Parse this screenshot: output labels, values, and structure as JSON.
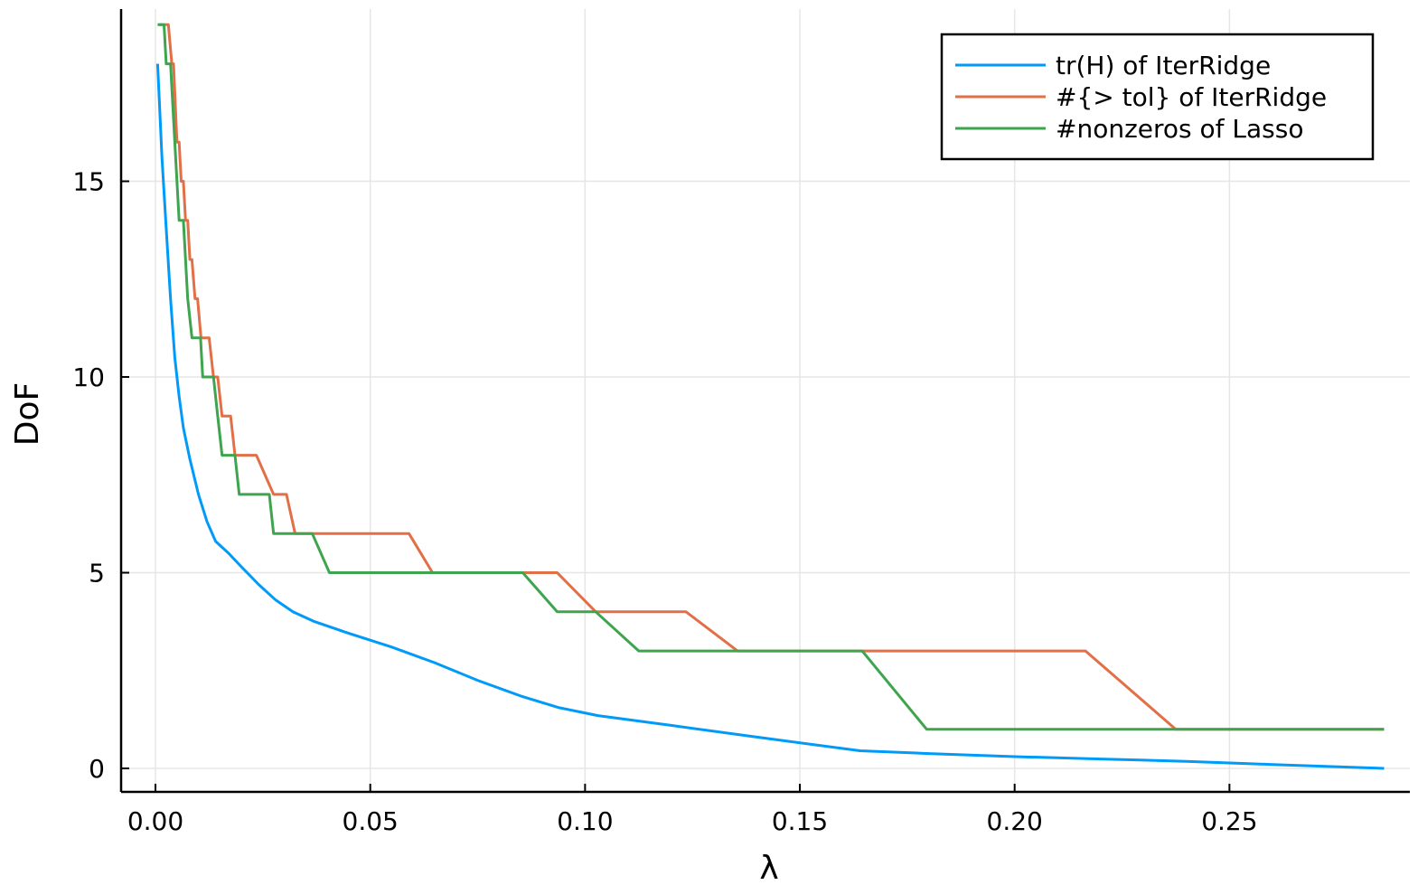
{
  "chart_data": {
    "type": "line",
    "xlabel": "λ",
    "ylabel": "DoF",
    "xlim": [
      -0.008,
      0.292
    ],
    "ylim": [
      -0.6,
      19.4
    ],
    "x_ticks": [
      0.0,
      0.05,
      0.1,
      0.15,
      0.2,
      0.25
    ],
    "x_tick_labels": [
      "0.00",
      "0.05",
      "0.10",
      "0.15",
      "0.20",
      "0.25"
    ],
    "y_ticks": [
      0,
      5,
      10,
      15
    ],
    "y_tick_labels": [
      "0",
      "5",
      "10",
      "15"
    ],
    "grid": true,
    "legend_position": "top-right",
    "colors": {
      "tr_h": "#009af9",
      "tol": "#e26f46",
      "lasso": "#3ea44e",
      "grid": "#e6e6e6",
      "axis": "#000000"
    },
    "series": [
      {
        "name": "tr(H) of IterRidge",
        "color_key": "tr_h",
        "x": [
          0.0005,
          0.0015,
          0.0025,
          0.0035,
          0.0045,
          0.0055,
          0.0065,
          0.008,
          0.01,
          0.012,
          0.014,
          0.017,
          0.02,
          0.024,
          0.028,
          0.032,
          0.037,
          0.045,
          0.055,
          0.065,
          0.075,
          0.085,
          0.094,
          0.103,
          0.12,
          0.14,
          0.164,
          0.18,
          0.2,
          0.22,
          0.24,
          0.26,
          0.286
        ],
        "y": [
          18.0,
          15.6,
          13.8,
          12.0,
          10.5,
          9.5,
          8.7,
          7.9,
          7.0,
          6.3,
          5.8,
          5.5,
          5.15,
          4.7,
          4.3,
          4.0,
          3.75,
          3.45,
          3.1,
          2.7,
          2.25,
          1.85,
          1.55,
          1.35,
          1.1,
          0.8,
          0.45,
          0.38,
          0.3,
          0.24,
          0.18,
          0.1,
          0.0
        ]
      },
      {
        "name": "#{> tol} of IterRidge",
        "color_key": "tol",
        "x": [
          0.001,
          0.0026,
          0.003,
          0.0038,
          0.0042,
          0.005,
          0.0055,
          0.006,
          0.0065,
          0.007,
          0.0075,
          0.008,
          0.0085,
          0.0092,
          0.0098,
          0.0106,
          0.0115,
          0.0125,
          0.0135,
          0.0145,
          0.0155,
          0.0165,
          0.0175,
          0.0185,
          0.0195,
          0.0205,
          0.0225,
          0.0235,
          0.0275,
          0.0305,
          0.0325,
          0.0335,
          0.0365,
          0.059,
          0.0645,
          0.0855,
          0.0935,
          0.1025,
          0.1235,
          0.1355,
          0.1645,
          0.2165,
          0.2375,
          0.286
        ],
        "y": [
          19,
          19,
          19,
          18,
          18,
          16,
          16,
          15,
          15,
          14,
          14,
          13,
          13,
          12,
          12,
          11,
          11,
          11,
          10,
          10,
          9,
          9,
          9,
          8,
          8,
          8,
          8,
          8,
          7,
          7,
          6,
          6,
          6,
          6,
          5,
          5,
          5,
          4,
          4,
          3,
          3,
          3,
          1,
          1
        ]
      },
      {
        "name": "#nonzeros of Lasso",
        "color_key": "lasso",
        "x": [
          0.0005,
          0.0015,
          0.002,
          0.0025,
          0.0035,
          0.0045,
          0.0055,
          0.0065,
          0.0075,
          0.0085,
          0.0095,
          0.0105,
          0.011,
          0.0115,
          0.0135,
          0.0145,
          0.0155,
          0.0165,
          0.0185,
          0.0195,
          0.0205,
          0.0215,
          0.0265,
          0.0275,
          0.0365,
          0.0405,
          0.0855,
          0.0935,
          0.1025,
          0.1125,
          0.1645,
          0.1795,
          0.286
        ],
        "y": [
          19,
          19,
          19,
          18,
          18,
          16,
          14,
          14,
          12,
          11,
          11,
          11,
          10,
          10,
          10,
          9,
          8,
          8,
          8,
          7,
          7,
          7,
          7,
          6,
          6,
          5,
          5,
          4,
          4,
          3,
          3,
          1,
          1
        ]
      }
    ]
  }
}
